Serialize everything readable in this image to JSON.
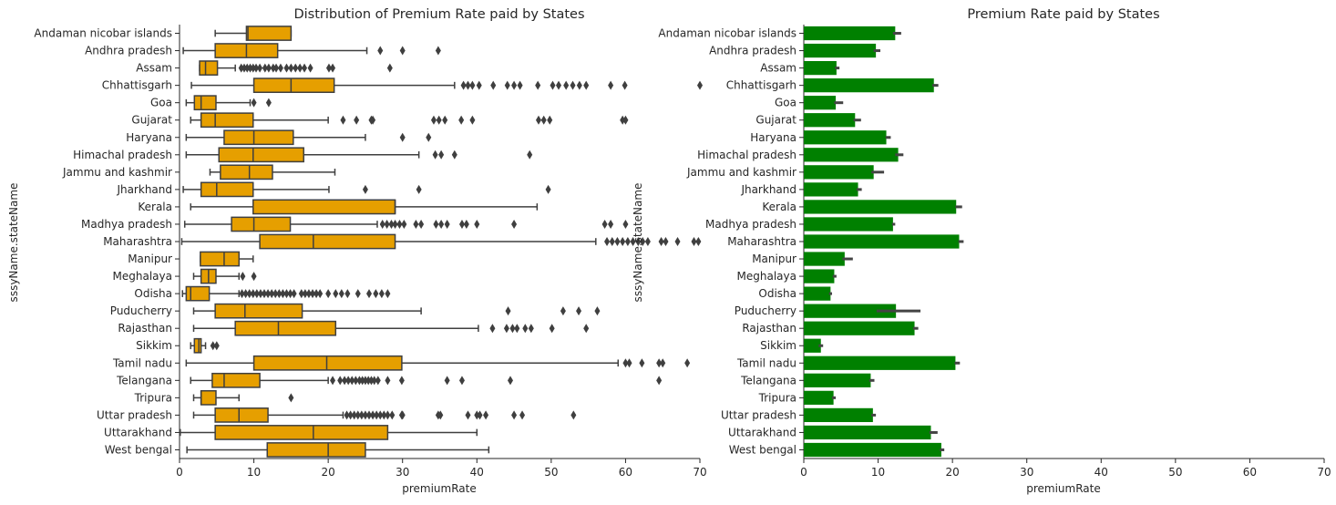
{
  "chart_data": [
    {
      "type": "box",
      "title": "Distribution of Premium Rate paid by States",
      "xlabel": "premiumRate",
      "ylabel": "sssyName.stateName",
      "xlim": [
        0,
        70
      ],
      "xticks": [
        0,
        10,
        20,
        30,
        40,
        50,
        60,
        70
      ],
      "grid": false,
      "color": "#E69F00",
      "categories": [
        "Andaman  nicobar islands",
        "Andhra pradesh",
        "Assam",
        "Chhattisgarh",
        "Goa",
        "Gujarat",
        "Haryana",
        "Himachal pradesh",
        "Jammu and kashmir",
        "Jharkhand",
        "Kerala",
        "Madhya pradesh",
        "Maharashtra",
        "Manipur",
        "Meghalaya",
        "Odisha",
        "Puducherry",
        "Rajasthan",
        "Sikkim",
        "Tamil nadu",
        "Telangana",
        "Tripura",
        "Uttar pradesh",
        "Uttarakhand",
        "West bengal"
      ],
      "boxes": [
        {
          "whislo": 4.8,
          "q1": 9.0,
          "med": 9.2,
          "q3": 15.0,
          "whishi": 15.0,
          "fliers": []
        },
        {
          "whislo": 0.5,
          "q1": 4.8,
          "med": 9.0,
          "q3": 13.2,
          "whishi": 25.2,
          "fliers": [
            27.0,
            30.0,
            34.8
          ]
        },
        {
          "whislo": 2.7,
          "q1": 2.7,
          "med": 3.5,
          "q3": 5.1,
          "whishi": 7.5,
          "fliers": [
            8.3,
            8.7,
            9.1,
            9.5,
            9.9,
            10.3,
            10.8,
            11.5,
            12.0,
            12.6,
            13.0,
            13.6,
            14.4,
            15.0,
            15.6,
            16.2,
            16.8,
            17.6,
            20.1,
            20.6,
            28.3
          ]
        },
        {
          "whislo": 1.6,
          "q1": 10.0,
          "med": 15.0,
          "q3": 20.8,
          "whishi": 37.0,
          "fliers": [
            38.2,
            38.8,
            39.4,
            40.3,
            42.2,
            44.1,
            45.0,
            45.8,
            48.2,
            50.2,
            51.0,
            52.0,
            52.9,
            53.8,
            54.7,
            58.0,
            59.9,
            70.0
          ]
        },
        {
          "whislo": 0.9,
          "q1": 2.0,
          "med": 2.9,
          "q3": 4.9,
          "whishi": 9.5,
          "fliers": [
            10.0,
            12.0
          ]
        },
        {
          "whislo": 1.5,
          "q1": 2.9,
          "med": 4.8,
          "q3": 9.9,
          "whishi": 20.0,
          "fliers": [
            22.0,
            23.8,
            25.8,
            26.0,
            34.2,
            34.9,
            35.7,
            37.9,
            39.4,
            48.3,
            49.0,
            49.8,
            59.6,
            60.0
          ]
        },
        {
          "whislo": 0.9,
          "q1": 6.0,
          "med": 10.0,
          "q3": 15.3,
          "whishi": 25.0,
          "fliers": [
            30.0,
            33.5
          ]
        },
        {
          "whislo": 0.9,
          "q1": 5.3,
          "med": 9.9,
          "q3": 16.7,
          "whishi": 32.2,
          "fliers": [
            34.4,
            35.2,
            37.0,
            47.1
          ]
        },
        {
          "whislo": 4.1,
          "q1": 5.5,
          "med": 9.4,
          "q3": 12.5,
          "whishi": 20.9,
          "fliers": []
        },
        {
          "whislo": 0.5,
          "q1": 2.9,
          "med": 5.0,
          "q3": 9.9,
          "whishi": 20.1,
          "fliers": [
            25.0,
            32.2,
            49.6
          ]
        },
        {
          "whislo": 1.5,
          "q1": 9.9,
          "med": 29.0,
          "q3": 29.0,
          "whishi": 48.1,
          "fliers": []
        },
        {
          "whislo": 0.7,
          "q1": 7.0,
          "med": 10.0,
          "q3": 14.9,
          "whishi": 26.6,
          "fliers": [
            27.3,
            27.9,
            28.5,
            29.0,
            29.6,
            30.2,
            31.8,
            32.5,
            34.5,
            35.2,
            36.0,
            38.0,
            38.6,
            40.0,
            45.0,
            57.2,
            58.0,
            60.0
          ]
        },
        {
          "whislo": 0.3,
          "q1": 10.8,
          "med": 18.0,
          "q3": 29.0,
          "whishi": 56.0,
          "fliers": [
            57.5,
            58.2,
            58.9,
            59.6,
            60.3,
            61.0,
            61.7,
            62.3,
            63.0,
            64.8,
            65.4,
            67.0,
            69.2,
            69.8
          ]
        },
        {
          "whislo": 2.8,
          "q1": 2.8,
          "med": 6.0,
          "q3": 8.0,
          "whishi": 9.9,
          "fliers": []
        },
        {
          "whislo": 1.9,
          "q1": 2.9,
          "med": 3.9,
          "q3": 4.9,
          "whishi": 8.0,
          "fliers": [
            8.5,
            10.0
          ]
        },
        {
          "whislo": 0.4,
          "q1": 0.9,
          "med": 1.5,
          "q3": 4.0,
          "whishi": 8.0,
          "fliers": [
            8.4,
            8.9,
            9.4,
            9.9,
            10.4,
            10.9,
            11.4,
            11.9,
            12.4,
            12.9,
            13.4,
            13.9,
            14.4,
            14.9,
            15.4,
            16.4,
            16.9,
            17.4,
            17.9,
            18.4,
            18.9,
            20.0,
            21.0,
            21.8,
            22.6,
            24.0,
            25.5,
            26.4,
            27.2,
            28.0
          ]
        },
        {
          "whislo": 1.9,
          "q1": 4.8,
          "med": 8.8,
          "q3": 16.5,
          "whishi": 32.5,
          "fliers": [
            44.2,
            51.6,
            53.7,
            56.2
          ]
        },
        {
          "whislo": 1.9,
          "q1": 7.5,
          "med": 13.3,
          "q3": 21.0,
          "whishi": 40.2,
          "fliers": [
            42.1,
            44.0,
            44.8,
            45.4,
            46.5,
            47.3,
            50.1,
            54.7
          ]
        },
        {
          "whislo": 1.5,
          "q1": 2.0,
          "med": 2.6,
          "q3": 2.9,
          "whishi": 3.5,
          "fliers": [
            4.5,
            5.0
          ]
        },
        {
          "whislo": 0.9,
          "q1": 10.0,
          "med": 19.8,
          "q3": 29.9,
          "whishi": 59.0,
          "fliers": [
            60.0,
            60.5,
            62.2,
            64.5,
            65.0,
            68.3
          ]
        },
        {
          "whislo": 1.5,
          "q1": 4.4,
          "med": 6.0,
          "q3": 10.8,
          "whishi": 20.0,
          "fliers": [
            20.6,
            21.6,
            22.2,
            22.7,
            23.2,
            23.7,
            24.2,
            24.6,
            25.0,
            25.4,
            25.8,
            26.2,
            26.7,
            28.0,
            29.9,
            36.0,
            38.0,
            44.5,
            64.5
          ]
        },
        {
          "whislo": 1.9,
          "q1": 2.9,
          "med": 2.9,
          "q3": 4.9,
          "whishi": 8.0,
          "fliers": [
            15.0
          ]
        },
        {
          "whislo": 1.9,
          "q1": 4.8,
          "med": 8.0,
          "q3": 11.9,
          "whishi": 22.0,
          "fliers": [
            22.5,
            23.0,
            23.5,
            24.0,
            24.5,
            25.0,
            25.5,
            26.0,
            26.5,
            27.0,
            27.5,
            28.0,
            28.6,
            29.9,
            30.0,
            34.8,
            35.1,
            38.8,
            40.0,
            40.4,
            41.2,
            45.0,
            46.1,
            53.0
          ]
        },
        {
          "whislo": 0.1,
          "q1": 4.8,
          "med": 18.0,
          "q3": 28.0,
          "whishi": 40.0,
          "fliers": []
        },
        {
          "whislo": 1.0,
          "q1": 11.8,
          "med": 20.0,
          "q3": 25.0,
          "whishi": 41.6,
          "fliers": []
        }
      ]
    },
    {
      "type": "bar",
      "orientation": "horizontal",
      "title": "Premium Rate paid by States",
      "xlabel": "premiumRate",
      "ylabel": "sssyName.stateName",
      "xlim": [
        0,
        70
      ],
      "xticks": [
        0,
        10,
        20,
        30,
        40,
        50,
        60,
        70
      ],
      "grid": false,
      "color": "#008000",
      "error_color": "#444444",
      "categories": [
        "Andaman  nicobar islands",
        "Andhra pradesh",
        "Assam",
        "Chhattisgarh",
        "Goa",
        "Gujarat",
        "Haryana",
        "Himachal pradesh",
        "Jammu and kashmir",
        "Jharkhand",
        "Kerala",
        "Madhya pradesh",
        "Maharashtra",
        "Manipur",
        "Meghalaya",
        "Odisha",
        "Puducherry",
        "Rajasthan",
        "Sikkim",
        "Tamil nadu",
        "Telangana",
        "Tripura",
        "Uttar pradesh",
        "Uttarakhand",
        "West bengal"
      ],
      "values": [
        12.3,
        9.7,
        4.4,
        17.5,
        4.3,
        6.9,
        11.1,
        12.7,
        9.4,
        7.3,
        20.5,
        12.0,
        20.9,
        5.5,
        4.1,
        3.6,
        12.4,
        14.9,
        2.3,
        20.4,
        9.0,
        4.0,
        9.3,
        17.1,
        18.5
      ],
      "errors": [
        [
          12.0,
          13.1
        ],
        [
          9.4,
          10.3
        ],
        [
          4.2,
          4.8
        ],
        [
          17.3,
          18.1
        ],
        [
          4.1,
          5.3
        ],
        [
          6.7,
          7.7
        ],
        [
          11.0,
          11.7
        ],
        [
          12.3,
          13.4
        ],
        [
          9.1,
          10.8
        ],
        [
          7.1,
          7.8
        ],
        [
          20.4,
          21.3
        ],
        [
          11.9,
          12.3
        ],
        [
          20.8,
          21.5
        ],
        [
          5.2,
          6.6
        ],
        [
          3.9,
          4.4
        ],
        [
          3.4,
          3.8
        ],
        [
          9.8,
          15.7
        ],
        [
          14.7,
          15.4
        ],
        [
          2.0,
          2.6
        ],
        [
          20.3,
          21.0
        ],
        [
          8.8,
          9.5
        ],
        [
          3.8,
          4.3
        ],
        [
          9.1,
          9.7
        ],
        [
          16.9,
          18.0
        ],
        [
          18.3,
          18.9
        ]
      ]
    }
  ]
}
